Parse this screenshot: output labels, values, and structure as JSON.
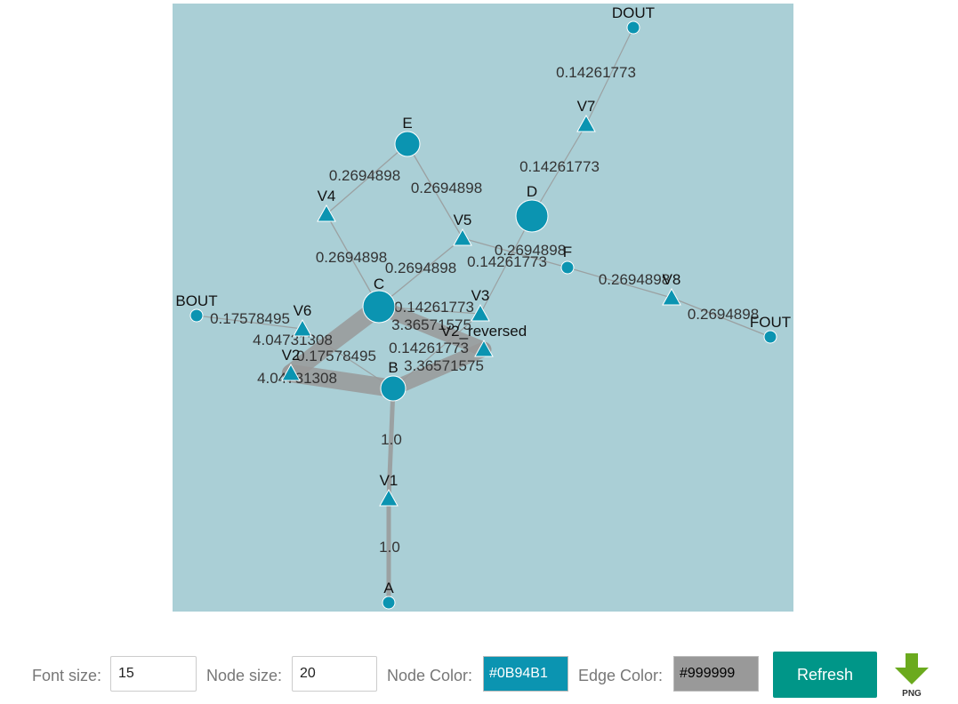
{
  "graph": {
    "background": "#AACFD6",
    "nodes": [
      {
        "id": "DOUT",
        "label": "DOUT",
        "shape": "circle",
        "size": "small"
      },
      {
        "id": "V7",
        "label": "V7",
        "shape": "triangle"
      },
      {
        "id": "E",
        "label": "E",
        "shape": "circle",
        "size": "medium"
      },
      {
        "id": "D",
        "label": "D",
        "shape": "circle",
        "size": "large"
      },
      {
        "id": "V4",
        "label": "V4",
        "shape": "triangle"
      },
      {
        "id": "V5",
        "label": "V5",
        "shape": "triangle"
      },
      {
        "id": "F",
        "label": "F",
        "shape": "circle",
        "size": "small"
      },
      {
        "id": "V8",
        "label": "V8",
        "shape": "triangle"
      },
      {
        "id": "FOUT",
        "label": "FOUT",
        "shape": "circle",
        "size": "small"
      },
      {
        "id": "BOUT",
        "label": "BOUT",
        "shape": "circle",
        "size": "small"
      },
      {
        "id": "C",
        "label": "C",
        "shape": "circle",
        "size": "large"
      },
      {
        "id": "V6",
        "label": "V6",
        "shape": "triangle"
      },
      {
        "id": "V3",
        "label": "V3",
        "shape": "triangle"
      },
      {
        "id": "V2_reversed",
        "label": "V2_reversed",
        "shape": "triangle"
      },
      {
        "id": "V2",
        "label": "V2",
        "shape": "triangle"
      },
      {
        "id": "B",
        "label": "B",
        "shape": "circle",
        "size": "medium"
      },
      {
        "id": "V1",
        "label": "V1",
        "shape": "triangle"
      },
      {
        "id": "A",
        "label": "A",
        "shape": "circle",
        "size": "small"
      }
    ],
    "edges": [
      {
        "source": "DOUT",
        "target": "V7",
        "label": "0.14261773",
        "weight": 0.14261773
      },
      {
        "source": "V7",
        "target": "D",
        "label": "0.14261773",
        "weight": 0.14261773
      },
      {
        "source": "E",
        "target": "V4",
        "label": "0.2694898",
        "weight": 0.2694898
      },
      {
        "source": "E",
        "target": "V5",
        "label": "0.2694898",
        "weight": 0.2694898
      },
      {
        "source": "V4",
        "target": "C",
        "label": "0.2694898",
        "weight": 0.2694898
      },
      {
        "source": "V5",
        "target": "C",
        "label": "0.2694898",
        "weight": 0.2694898
      },
      {
        "source": "V5",
        "target": "F",
        "label": "0.2694898",
        "weight": 0.2694898
      },
      {
        "source": "D",
        "target": "V3",
        "label": "0.14261773",
        "weight": 0.14261773
      },
      {
        "source": "F",
        "target": "V8",
        "label": "0.2694898",
        "weight": 0.2694898
      },
      {
        "source": "V8",
        "target": "FOUT",
        "label": "0.2694898",
        "weight": 0.2694898
      },
      {
        "source": "BOUT",
        "target": "V6",
        "label": "0.17578495",
        "weight": 0.17578495
      },
      {
        "source": "V6",
        "target": "B",
        "label": "0.17578495",
        "weight": 0.17578495
      },
      {
        "source": "C",
        "target": "V3",
        "label": "0.14261773",
        "weight": 0.14261773
      },
      {
        "source": "V3",
        "target": "B",
        "label": "0.14261773",
        "weight": 0.14261773
      },
      {
        "source": "C",
        "target": "V2_reversed",
        "label": "3.36571575",
        "weight": 3.36571575
      },
      {
        "source": "V2_reversed",
        "target": "B",
        "label": "3.36571575",
        "weight": 3.36571575
      },
      {
        "source": "C",
        "target": "V2",
        "label": "4.04731308",
        "weight": 4.04731308
      },
      {
        "source": "V2",
        "target": "B",
        "label": "4.04731308",
        "weight": 4.04731308
      },
      {
        "source": "B",
        "target": "V1",
        "label": "1.0",
        "weight": 1.0
      },
      {
        "source": "V1",
        "target": "A",
        "label": "1.0",
        "weight": 1.0
      }
    ]
  },
  "controls": {
    "font_size_label": "Font size:",
    "font_size_value": "15",
    "node_size_label": "Node size:",
    "node_size_value": "20",
    "node_color_label": "Node Color:",
    "node_color_value": "#0B94B1",
    "edge_color_label": "Edge Color:",
    "edge_color_value": "#999999",
    "refresh_label": "Refresh",
    "refresh_color": "#009688",
    "png_label": "PNG",
    "png_icon": "download-arrow-icon",
    "png_icon_color": "#6BAA1E"
  }
}
